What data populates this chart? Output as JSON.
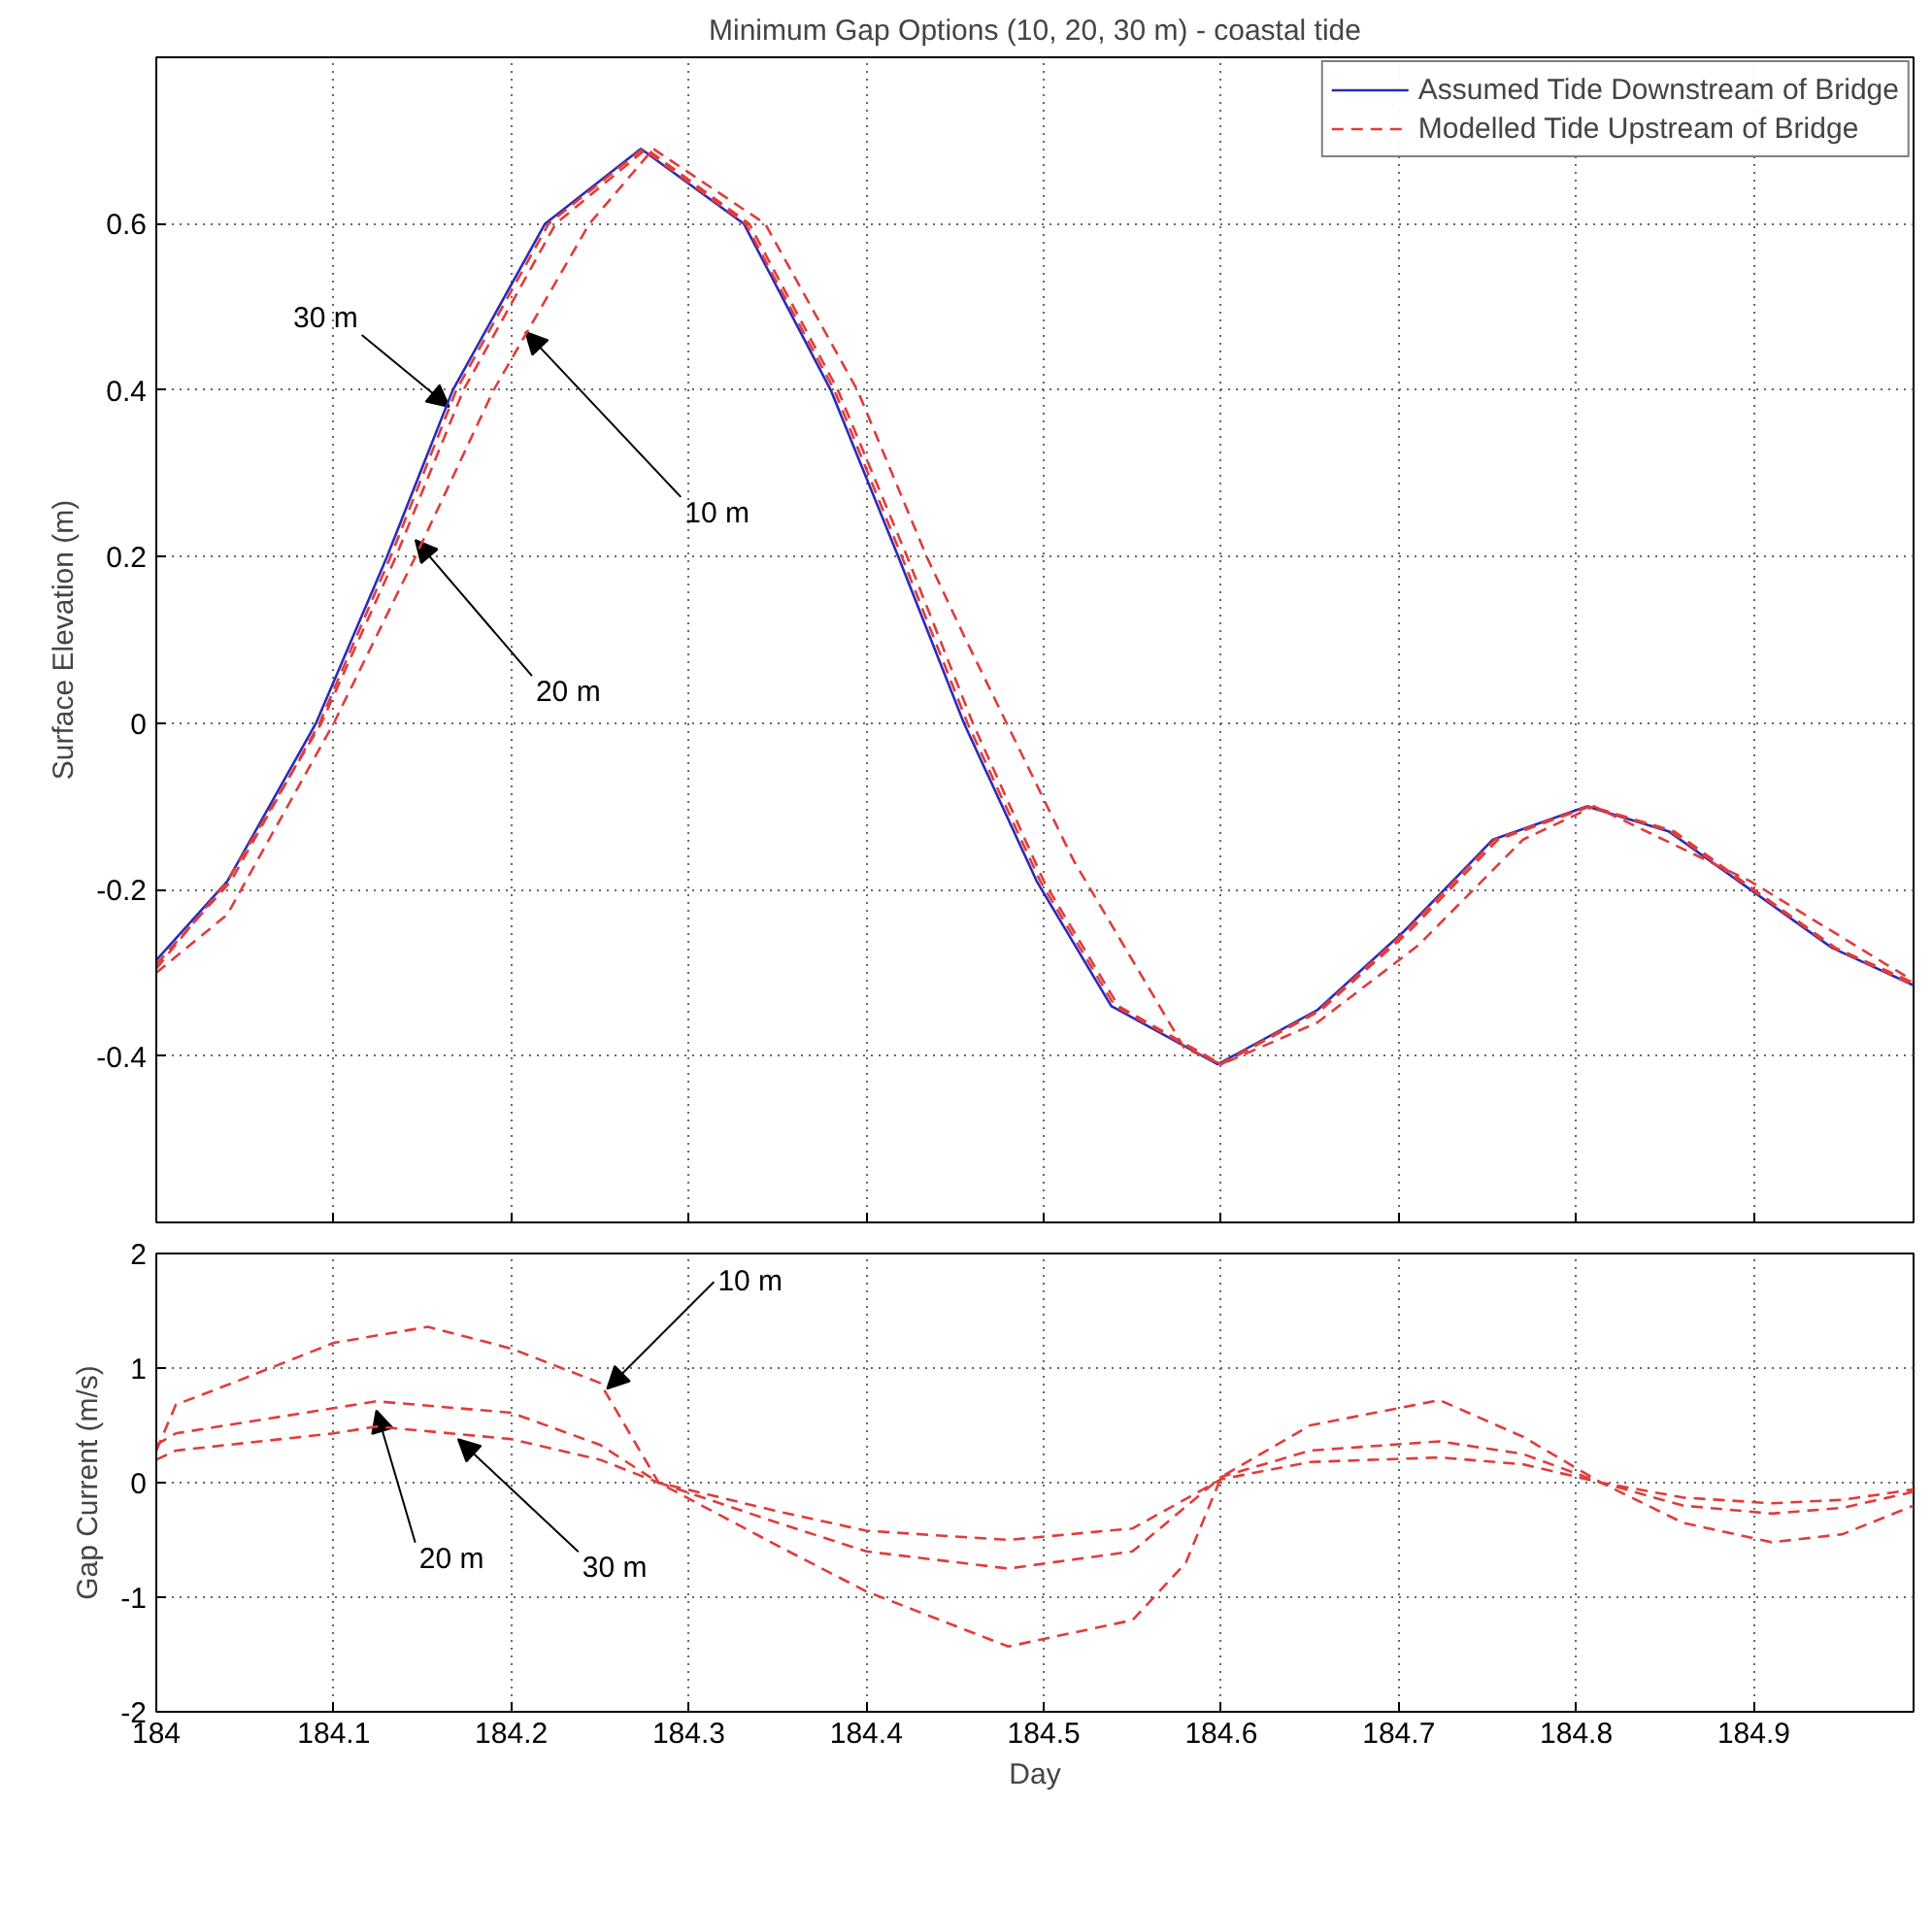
{
  "chart_data": [
    {
      "type": "line",
      "title": "Minimum Gap Options (10, 20, 30 m) - coastal tide",
      "ylabel": "Surface Elevation (m)",
      "xlim": [
        184,
        184.99
      ],
      "xticks": [
        184,
        184.1,
        184.2,
        184.3,
        184.4,
        184.5,
        184.6,
        184.7,
        184.8,
        184.9
      ],
      "ylim": [
        -0.6,
        0.8
      ],
      "yticks": [
        -0.4,
        -0.2,
        0,
        0.2,
        0.4,
        0.6
      ],
      "grid": true,
      "legend": "top right",
      "tick_labels": "y",
      "series": [
        {
          "name": "Assumed Tide Downstream of Bridge",
          "color": "#2b2bb8",
          "line_style": "solid",
          "x": [
            184.0,
            184.04,
            184.09,
            184.13,
            184.167,
            184.219,
            184.273,
            184.331,
            184.38,
            184.418,
            184.455,
            184.496,
            184.538,
            184.598,
            184.654,
            184.703,
            184.753,
            184.806,
            184.852,
            184.898,
            184.944,
            184.99
          ],
          "values": [
            -0.285,
            -0.19,
            0,
            0.2,
            0.4,
            0.6,
            0.69,
            0.6,
            0.4,
            0.2,
            0,
            -0.19,
            -0.34,
            -0.41,
            -0.345,
            -0.25,
            -0.14,
            -0.1,
            -0.13,
            -0.2,
            -0.27,
            -0.315
          ]
        },
        {
          "name": "Modelled Tide Upstream of Bridge",
          "color": "#e03c3c",
          "line_style": "dashed",
          "x": [
            184.0,
            184.04,
            184.1,
            184.146,
            184.19,
            184.244,
            184.28,
            184.343,
            184.395,
            184.434,
            184.455,
            184.517,
            184.579,
            184.6,
            184.654,
            184.711,
            184.77,
            184.81,
            184.898,
            184.99
          ],
          "values": [
            -0.3,
            -0.23,
            0,
            0.2,
            0.4,
            0.6,
            0.69,
            0.6,
            0.4,
            0.2,
            0.105,
            -0.166,
            -0.39,
            -0.41,
            -0.36,
            -0.267,
            -0.14,
            -0.1,
            -0.19,
            -0.31
          ]
        },
        {
          "color": "#e03c3c",
          "line_style": "dashed",
          "x": [
            184.0,
            184.04,
            184.093,
            184.135,
            184.173,
            184.225,
            184.276,
            184.334,
            184.384,
            184.423,
            184.46,
            184.5,
            184.542,
            184.6,
            184.656,
            184.706,
            184.756,
            184.808,
            184.855,
            184.9,
            184.946,
            184.99
          ],
          "values": [
            -0.295,
            -0.19,
            0,
            0.2,
            0.4,
            0.6,
            0.69,
            0.6,
            0.4,
            0.2,
            0,
            -0.19,
            -0.34,
            -0.41,
            -0.345,
            -0.25,
            -0.14,
            -0.1,
            -0.13,
            -0.2,
            -0.27,
            -0.312
          ]
        },
        {
          "color": "#e03c3c",
          "line_style": "dashed",
          "x": [
            184.0,
            184.042,
            184.092,
            184.132,
            184.169,
            184.221,
            184.274,
            184.332,
            184.382,
            184.42,
            184.457,
            184.498,
            184.54,
            184.599,
            184.655,
            184.704,
            184.754,
            184.807,
            184.853,
            184.899,
            184.945,
            184.99
          ],
          "values": [
            -0.29,
            -0.19,
            0,
            0.2,
            0.4,
            0.6,
            0.69,
            0.6,
            0.4,
            0.2,
            0,
            -0.19,
            -0.34,
            -0.41,
            -0.345,
            -0.25,
            -0.14,
            -0.1,
            -0.13,
            -0.2,
            -0.27,
            -0.315
          ]
        }
      ],
      "annotations": [
        {
          "text": "30 m",
          "x": 184.165,
          "y": 0.38
        },
        {
          "text": "10 m",
          "x": 184.208,
          "y": 0.47
        },
        {
          "text": "20 m",
          "x": 184.146,
          "y": 0.22
        }
      ]
    },
    {
      "type": "line",
      "xlabel": "Day",
      "ylabel": "Gap Current (m/s)",
      "xlim": [
        184,
        184.99
      ],
      "xticks": [
        184,
        184.1,
        184.2,
        184.3,
        184.4,
        184.5,
        184.6,
        184.7,
        184.8,
        184.9
      ],
      "ylim": [
        -2,
        2
      ],
      "yticks": [
        -2,
        -1,
        0,
        1,
        2
      ],
      "grid": true,
      "series": [
        {
          "color": "#e03c3c",
          "line_style": "dashed",
          "x": [
            184.0,
            184.011,
            184.043,
            184.1,
            184.153,
            184.2,
            184.25,
            184.283,
            184.35,
            184.4,
            184.48,
            184.55,
            184.58,
            184.6,
            184.65,
            184.723,
            184.77,
            184.814,
            184.86,
            184.91,
            184.95,
            184.99
          ],
          "values": [
            0.28,
            0.68,
            0.87,
            1.22,
            1.36,
            1.17,
            0.87,
            0,
            -0.55,
            -0.95,
            -1.43,
            -1.2,
            -0.7,
            0.05,
            0.5,
            0.72,
            0.4,
            0,
            -0.35,
            -0.52,
            -0.45,
            -0.2
          ]
        },
        {
          "color": "#e03c3c",
          "line_style": "dashed",
          "x": [
            184.0,
            184.011,
            184.1,
            184.124,
            184.2,
            184.25,
            184.283,
            184.35,
            184.4,
            184.48,
            184.55,
            184.6,
            184.65,
            184.723,
            184.77,
            184.814,
            184.86,
            184.91,
            184.95,
            184.99
          ],
          "values": [
            0.33,
            0.43,
            0.65,
            0.71,
            0.61,
            0.33,
            0,
            -0.35,
            -0.6,
            -0.75,
            -0.6,
            0.05,
            0.28,
            0.36,
            0.25,
            0,
            -0.2,
            -0.27,
            -0.22,
            -0.08
          ]
        },
        {
          "color": "#e03c3c",
          "line_style": "dashed",
          "x": [
            184.0,
            184.011,
            184.1,
            184.124,
            184.2,
            184.25,
            184.283,
            184.35,
            184.4,
            184.48,
            184.55,
            184.6,
            184.65,
            184.723,
            184.77,
            184.814,
            184.86,
            184.91,
            184.95,
            184.99
          ],
          "values": [
            0.2,
            0.28,
            0.43,
            0.49,
            0.38,
            0.2,
            0,
            -0.25,
            -0.42,
            -0.5,
            -0.4,
            0.03,
            0.18,
            0.22,
            0.16,
            0,
            -0.13,
            -0.18,
            -0.15,
            -0.06
          ]
        }
      ],
      "annotations": [
        {
          "text": "10 m",
          "x": 184.254,
          "y": 0.82
        },
        {
          "text": "20 m",
          "x": 184.124,
          "y": 0.63
        },
        {
          "text": "30 m",
          "x": 184.17,
          "y": 0.38
        }
      ]
    }
  ]
}
